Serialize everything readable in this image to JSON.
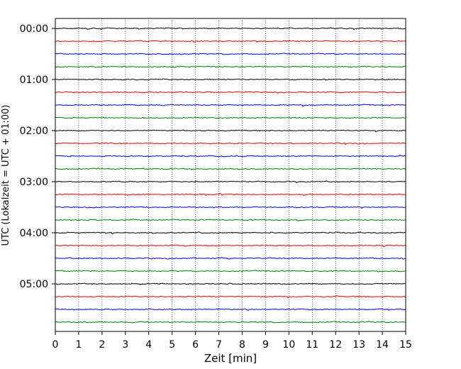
{
  "chart_data": {
    "type": "line",
    "chart_kind": "helicorder",
    "title": "",
    "xlabel": "Zeit  [min]",
    "ylabel": "UTC (Lokalzeit = UTC + 01:00)",
    "xlim": [
      0,
      15
    ],
    "x_ticks": [
      "0",
      "1",
      "2",
      "3",
      "4",
      "5",
      "6",
      "7",
      "8",
      "9",
      "10",
      "11",
      "12",
      "13",
      "14",
      "15"
    ],
    "y_ticks": [
      "00:00",
      "01:00",
      "02:00",
      "03:00",
      "04:00",
      "05:00"
    ],
    "trace_interval_minutes": 15,
    "trace_count": 24,
    "trace_colors": [
      "#000000",
      "#ff0000",
      "#0000ff",
      "#008000"
    ],
    "vertical_grid": "dotted",
    "series": [
      {
        "start": "00:00"
      },
      {
        "start": "00:15"
      },
      {
        "start": "00:30"
      },
      {
        "start": "00:45"
      },
      {
        "start": "01:00"
      },
      {
        "start": "01:15"
      },
      {
        "start": "01:30"
      },
      {
        "start": "01:45"
      },
      {
        "start": "02:00"
      },
      {
        "start": "02:15"
      },
      {
        "start": "02:30"
      },
      {
        "start": "02:45"
      },
      {
        "start": "03:00"
      },
      {
        "start": "03:15"
      },
      {
        "start": "03:30"
      },
      {
        "start": "03:45"
      },
      {
        "start": "04:00"
      },
      {
        "start": "04:15"
      },
      {
        "start": "04:30"
      },
      {
        "start": "04:45"
      },
      {
        "start": "05:00"
      },
      {
        "start": "05:15"
      },
      {
        "start": "05:30"
      },
      {
        "start": "05:45"
      }
    ]
  }
}
